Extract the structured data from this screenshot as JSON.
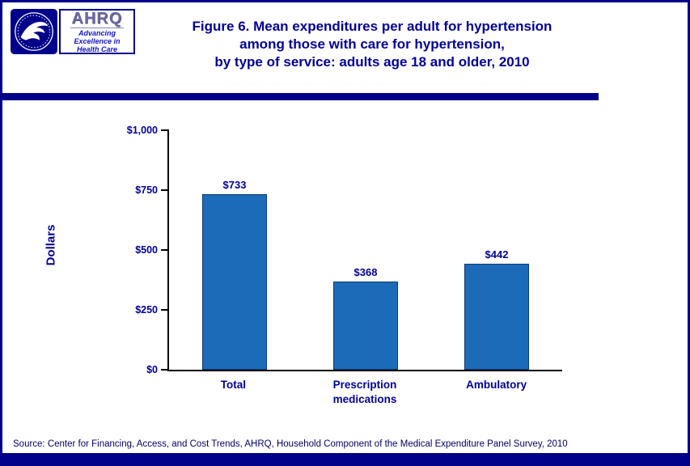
{
  "header": {
    "title_lines": [
      "Figure 6. Mean expenditures per adult for hypertension",
      "among those with care for hypertension,",
      "by type of service: adults age 18 and older, 2010"
    ],
    "hhs_logo_icon": "hhs-eagle-seal-icon",
    "ahrq_logo": {
      "word": "AHRQ",
      "tagline_lines": [
        "Advancing",
        "Excellence in",
        "Health Care"
      ]
    }
  },
  "chart_data": {
    "type": "bar",
    "title": "Figure 6. Mean expenditures per adult for hypertension among those with care for hypertension, by type of service: adults age 18 and older, 2010",
    "categories": [
      "Total",
      "Prescription medications",
      "Ambulatory"
    ],
    "values": [
      733,
      368,
      442
    ],
    "value_labels": [
      "$733",
      "$368",
      "$442"
    ],
    "xlabel": "",
    "ylabel": "Dollars",
    "ylim": [
      0,
      1000
    ],
    "yticks": [
      0,
      250,
      500,
      750,
      1000
    ],
    "ytick_labels": [
      "$0",
      "$250",
      "$500",
      "$750",
      "$1,000"
    ],
    "grid": false,
    "legend": false,
    "bar_color": "#1C6BB8",
    "bar_border_color": "#0b3a74"
  },
  "footer": {
    "source": "Source: Center for Financing, Access, and Cost Trends, AHRQ, Household Component of the Medical Expenditure Panel Survey, 2010"
  },
  "colors": {
    "accent_navy": "#00008B",
    "title_blue": "#000099"
  }
}
